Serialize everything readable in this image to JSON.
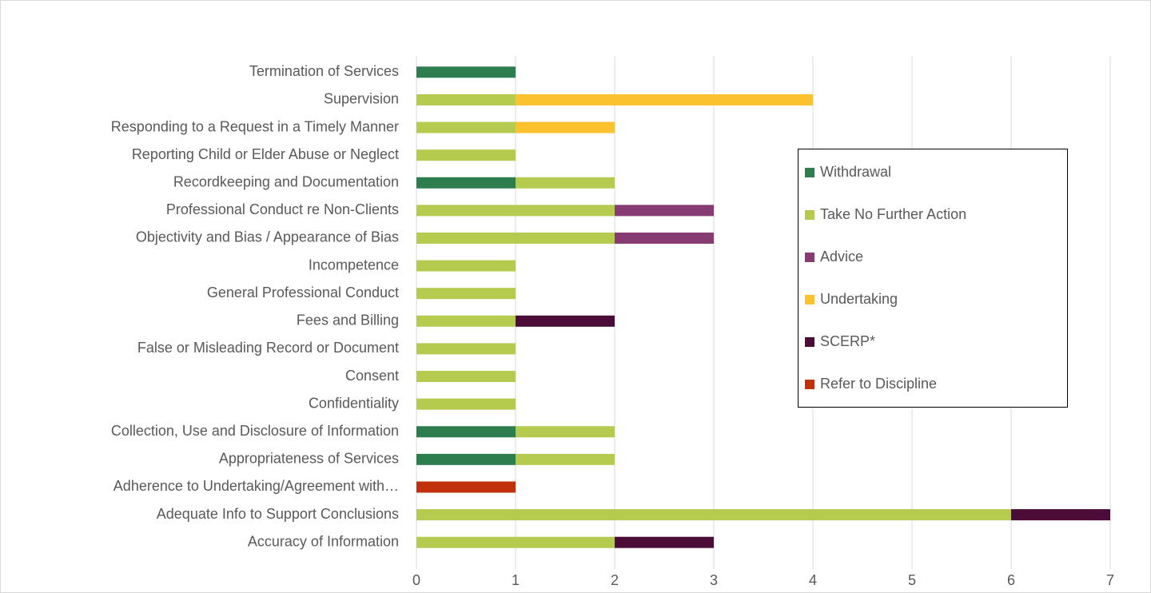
{
  "chart_data": {
    "type": "stacked_barh",
    "categories": [
      "Termination of Services",
      "Supervision",
      "Responding to a Request in a Timely Manner",
      "Reporting Child or Elder Abuse or Neglect",
      "Recordkeeping and Documentation",
      "Professional Conduct re Non-Clients",
      "Objectivity and Bias / Appearance of Bias",
      "Incompetence",
      "General Professional Conduct",
      "Fees and Billing",
      "False or Misleading Record or Document",
      "Consent",
      "Confidentiality",
      "Collection, Use and Disclosure of Information",
      "Appropriateness of Services",
      "Adherence to Undertaking/Agreement with…",
      "Adequate Info to Support Conclusions",
      "Accuracy of Information"
    ],
    "series": [
      {
        "name": "Withdrawal",
        "color": "#2e7d4f",
        "values": [
          1,
          0,
          0,
          0,
          1,
          0,
          0,
          0,
          0,
          0,
          0,
          0,
          0,
          1,
          1,
          0,
          0,
          0
        ]
      },
      {
        "name": "Take No Further Action",
        "color": "#b4cb50",
        "values": [
          0,
          1,
          1,
          1,
          1,
          2,
          2,
          1,
          1,
          1,
          1,
          1,
          1,
          1,
          1,
          0,
          6,
          2
        ]
      },
      {
        "name": "Advice",
        "color": "#873b73",
        "values": [
          0,
          0,
          0,
          0,
          0,
          1,
          1,
          0,
          0,
          0,
          0,
          0,
          0,
          0,
          0,
          0,
          0,
          0
        ]
      },
      {
        "name": "Undertaking",
        "color": "#fbc12e",
        "values": [
          0,
          3,
          1,
          0,
          0,
          0,
          0,
          0,
          0,
          0,
          0,
          0,
          0,
          0,
          0,
          0,
          0,
          0
        ]
      },
      {
        "name": "SCERP*",
        "color": "#4b0d37",
        "values": [
          0,
          0,
          0,
          0,
          0,
          0,
          0,
          0,
          0,
          1,
          0,
          0,
          0,
          0,
          0,
          0,
          1,
          1
        ]
      },
      {
        "name": "Refer to Discipline",
        "color": "#c0310b",
        "values": [
          0,
          0,
          0,
          0,
          0,
          0,
          0,
          0,
          0,
          0,
          0,
          0,
          0,
          0,
          0,
          1,
          0,
          0
        ]
      }
    ],
    "xlim": [
      0,
      7
    ],
    "xticks": [
      0,
      1,
      2,
      3,
      4,
      5,
      6,
      7
    ],
    "grid": true,
    "legend": "right"
  }
}
